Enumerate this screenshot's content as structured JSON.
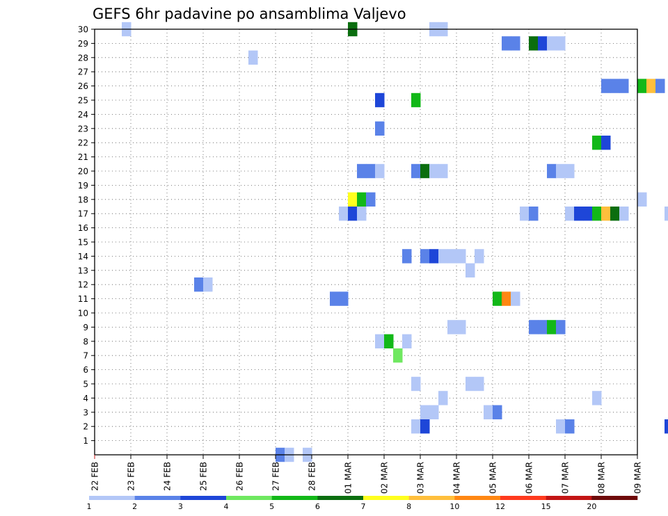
{
  "chart_data": {
    "type": "heatmap",
    "title": "GEFS 6hr padavine po ansamblima Valjevo",
    "xlabel": "",
    "ylabel": "",
    "x_tick_labels": [
      "22 FEB",
      "23 FEB",
      "24 FEB",
      "25 FEB",
      "26 FEB",
      "27 FEB",
      "28 FEB",
      "01 MAR",
      "02 MAR",
      "03 MAR",
      "04 MAR",
      "05 MAR",
      "06 MAR",
      "07 MAR",
      "08 MAR",
      "09 MAR"
    ],
    "y_tick_labels": [
      "1",
      "2",
      "3",
      "4",
      "5",
      "6",
      "7",
      "8",
      "9",
      "10",
      "11",
      "12",
      "13",
      "14",
      "15",
      "16",
      "17",
      "18",
      "19",
      "20",
      "21",
      "22",
      "23",
      "24",
      "25",
      "26",
      "27",
      "28",
      "29",
      "30"
    ],
    "y_range": [
      0,
      30
    ],
    "x_step_hours": 6,
    "grid": true,
    "colorbar": {
      "labels": [
        "1",
        "2",
        "3",
        "4",
        "5",
        "6",
        "7",
        "8",
        "10",
        "12",
        "15",
        "20"
      ],
      "colors": [
        "#b3c7f7",
        "#5a82e8",
        "#1e46d8",
        "#6fe860",
        "#12b818",
        "#0b6e0f",
        "#ffff1e",
        "#ffbf3c",
        "#ff8712",
        "#ff3a1e",
        "#c31414",
        "#6e0a0a"
      ]
    },
    "cells": [
      {
        "member": 30,
        "day": "22 FEB",
        "step": 3,
        "value": 1
      },
      {
        "member": 30,
        "day": "01 MAR",
        "step": 0,
        "value": 6
      },
      {
        "member": 30,
        "day": "03 MAR",
        "step": 1,
        "value": 1
      },
      {
        "member": 30,
        "day": "03 MAR",
        "step": 2,
        "value": 1
      },
      {
        "member": 29,
        "day": "05 MAR",
        "step": 1,
        "value": 2
      },
      {
        "member": 29,
        "day": "05 MAR",
        "step": 2,
        "value": 2
      },
      {
        "member": 29,
        "day": "06 MAR",
        "step": 0,
        "value": 6
      },
      {
        "member": 29,
        "day": "06 MAR",
        "step": 1,
        "value": 3
      },
      {
        "member": 29,
        "day": "06 MAR",
        "step": 2,
        "value": 1
      },
      {
        "member": 29,
        "day": "06 MAR",
        "step": 3,
        "value": 1
      },
      {
        "member": 28,
        "day": "26 FEB",
        "step": 1,
        "value": 1
      },
      {
        "member": 26,
        "day": "08 MAR",
        "step": 0,
        "value": 2
      },
      {
        "member": 26,
        "day": "08 MAR",
        "step": 1,
        "value": 2
      },
      {
        "member": 26,
        "day": "08 MAR",
        "step": 2,
        "value": 2
      },
      {
        "member": 26,
        "day": "09 MAR",
        "step": 0,
        "value": 5
      },
      {
        "member": 26,
        "day": "09 MAR",
        "step": 1,
        "value": 8
      },
      {
        "member": 26,
        "day": "09 MAR",
        "step": 2,
        "value": 2
      },
      {
        "member": 25,
        "day": "01 MAR",
        "step": 3,
        "value": 3
      },
      {
        "member": 25,
        "day": "02 MAR",
        "step": 3,
        "value": 5
      },
      {
        "member": 23,
        "day": "01 MAR",
        "step": 3,
        "value": 2
      },
      {
        "member": 22,
        "day": "07 MAR",
        "step": 3,
        "value": 5
      },
      {
        "member": 22,
        "day": "08 MAR",
        "step": 0,
        "value": 3
      },
      {
        "member": 20,
        "day": "01 MAR",
        "step": 1,
        "value": 2
      },
      {
        "member": 20,
        "day": "01 MAR",
        "step": 2,
        "value": 2
      },
      {
        "member": 20,
        "day": "01 MAR",
        "step": 3,
        "value": 1
      },
      {
        "member": 20,
        "day": "02 MAR",
        "step": 3,
        "value": 2
      },
      {
        "member": 20,
        "day": "03 MAR",
        "step": 0,
        "value": 6
      },
      {
        "member": 20,
        "day": "03 MAR",
        "step": 1,
        "value": 1
      },
      {
        "member": 20,
        "day": "03 MAR",
        "step": 2,
        "value": 1
      },
      {
        "member": 20,
        "day": "06 MAR",
        "step": 2,
        "value": 2
      },
      {
        "member": 20,
        "day": "06 MAR",
        "step": 3,
        "value": 1
      },
      {
        "member": 20,
        "day": "07 MAR",
        "step": 0,
        "value": 1
      },
      {
        "member": 18,
        "day": "01 MAR",
        "step": 0,
        "value": 7
      },
      {
        "member": 18,
        "day": "01 MAR",
        "step": 1,
        "value": 5
      },
      {
        "member": 18,
        "day": "01 MAR",
        "step": 2,
        "value": 2
      },
      {
        "member": 18,
        "day": "09 MAR",
        "step": 0,
        "value": 1
      },
      {
        "member": 17,
        "day": "28 FEB",
        "step": 3,
        "value": 1
      },
      {
        "member": 17,
        "day": "01 MAR",
        "step": 0,
        "value": 3
      },
      {
        "member": 17,
        "day": "01 MAR",
        "step": 1,
        "value": 1
      },
      {
        "member": 17,
        "day": "05 MAR",
        "step": 3,
        "value": 1
      },
      {
        "member": 17,
        "day": "06 MAR",
        "step": 0,
        "value": 2
      },
      {
        "member": 17,
        "day": "07 MAR",
        "step": 0,
        "value": 1
      },
      {
        "member": 17,
        "day": "07 MAR",
        "step": 1,
        "value": 3
      },
      {
        "member": 17,
        "day": "07 MAR",
        "step": 2,
        "value": 3
      },
      {
        "member": 17,
        "day": "07 MAR",
        "step": 3,
        "value": 5
      },
      {
        "member": 17,
        "day": "08 MAR",
        "step": 0,
        "value": 8
      },
      {
        "member": 17,
        "day": "08 MAR",
        "step": 1,
        "value": 6
      },
      {
        "member": 17,
        "day": "08 MAR",
        "step": 2,
        "value": 1
      },
      {
        "member": 17,
        "day": "09 MAR",
        "step": 3,
        "value": 1
      },
      {
        "member": 14,
        "day": "02 MAR",
        "step": 2,
        "value": 2
      },
      {
        "member": 14,
        "day": "03 MAR",
        "step": 0,
        "value": 2
      },
      {
        "member": 14,
        "day": "03 MAR",
        "step": 1,
        "value": 3
      },
      {
        "member": 14,
        "day": "03 MAR",
        "step": 2,
        "value": 1
      },
      {
        "member": 14,
        "day": "03 MAR",
        "step": 3,
        "value": 1
      },
      {
        "member": 14,
        "day": "04 MAR",
        "step": 0,
        "value": 1
      },
      {
        "member": 14,
        "day": "04 MAR",
        "step": 2,
        "value": 1
      },
      {
        "member": 13,
        "day": "04 MAR",
        "step": 1,
        "value": 1
      },
      {
        "member": 12,
        "day": "24 FEB",
        "step": 3,
        "value": 2
      },
      {
        "member": 12,
        "day": "25 FEB",
        "step": 0,
        "value": 1
      },
      {
        "member": 11,
        "day": "28 FEB",
        "step": 2,
        "value": 2
      },
      {
        "member": 11,
        "day": "28 FEB",
        "step": 3,
        "value": 2
      },
      {
        "member": 11,
        "day": "05 MAR",
        "step": 0,
        "value": 5
      },
      {
        "member": 11,
        "day": "05 MAR",
        "step": 1,
        "value": 10
      },
      {
        "member": 11,
        "day": "05 MAR",
        "step": 2,
        "value": 1
      },
      {
        "member": 9,
        "day": "03 MAR",
        "step": 3,
        "value": 1
      },
      {
        "member": 9,
        "day": "04 MAR",
        "step": 0,
        "value": 1
      },
      {
        "member": 9,
        "day": "06 MAR",
        "step": 0,
        "value": 2
      },
      {
        "member": 9,
        "day": "06 MAR",
        "step": 1,
        "value": 2
      },
      {
        "member": 9,
        "day": "06 MAR",
        "step": 2,
        "value": 5
      },
      {
        "member": 9,
        "day": "06 MAR",
        "step": 3,
        "value": 2
      },
      {
        "member": 8,
        "day": "01 MAR",
        "step": 3,
        "value": 1
      },
      {
        "member": 8,
        "day": "02 MAR",
        "step": 0,
        "value": 5
      },
      {
        "member": 8,
        "day": "02 MAR",
        "step": 2,
        "value": 1
      },
      {
        "member": 7,
        "day": "02 MAR",
        "step": 1,
        "value": 4
      },
      {
        "member": 5,
        "day": "02 MAR",
        "step": 3,
        "value": 1
      },
      {
        "member": 5,
        "day": "04 MAR",
        "step": 1,
        "value": 1
      },
      {
        "member": 5,
        "day": "04 MAR",
        "step": 2,
        "value": 1
      },
      {
        "member": 4,
        "day": "03 MAR",
        "step": 2,
        "value": 1
      },
      {
        "member": 4,
        "day": "07 MAR",
        "step": 3,
        "value": 1
      },
      {
        "member": 3,
        "day": "03 MAR",
        "step": 0,
        "value": 1
      },
      {
        "member": 3,
        "day": "03 MAR",
        "step": 1,
        "value": 1
      },
      {
        "member": 3,
        "day": "04 MAR",
        "step": 3,
        "value": 1
      },
      {
        "member": 3,
        "day": "05 MAR",
        "step": 0,
        "value": 2
      },
      {
        "member": 2,
        "day": "02 MAR",
        "step": 3,
        "value": 1
      },
      {
        "member": 2,
        "day": "03 MAR",
        "step": 0,
        "value": 3
      },
      {
        "member": 2,
        "day": "06 MAR",
        "step": 3,
        "value": 1
      },
      {
        "member": 2,
        "day": "07 MAR",
        "step": 0,
        "value": 2
      },
      {
        "member": 2,
        "day": "09 MAR",
        "step": 3,
        "value": 3
      },
      {
        "member": 0,
        "day": "27 FEB",
        "step": 0,
        "value": 2
      },
      {
        "member": 0,
        "day": "27 FEB",
        "step": 1,
        "value": 1
      },
      {
        "member": 0,
        "day": "27 FEB",
        "step": 3,
        "value": 1
      }
    ]
  }
}
